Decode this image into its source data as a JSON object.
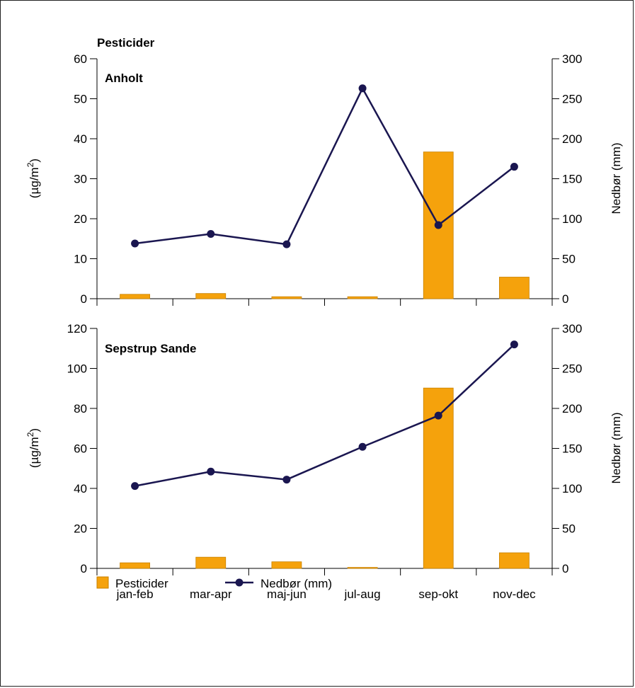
{
  "colors": {
    "bar": "#f5a20c",
    "bar_stroke": "#c98200",
    "line": "#1a1650"
  },
  "legend": {
    "bar_label": "Pesticider",
    "line_label": "Nedbør (mm)"
  },
  "chart_data": [
    {
      "type": "bar+line",
      "title": "Pesticider",
      "subtitle": "Anholt",
      "categories": [
        "jan-feb",
        "mar-apr",
        "maj-jun",
        "jul-aug",
        "sep-okt",
        "nov-dec"
      ],
      "ylabel": "(µg/m²)",
      "ylabel_base": "(µg/m",
      "ylabel_sup": "2",
      "ylabel_close": ")",
      "y2label": "Nedbør (mm)",
      "ylim": [
        0,
        60
      ],
      "yticks": [
        "0",
        "10",
        "20",
        "30",
        "40",
        "50",
        "60"
      ],
      "y2lim": [
        0,
        300
      ],
      "y2ticks": [
        "0",
        "50",
        "100",
        "150",
        "200",
        "250",
        "300"
      ],
      "series": [
        {
          "name": "Pesticider",
          "kind": "bar",
          "axis": "left",
          "values": [
            1.1,
            1.3,
            0.5,
            0.5,
            36.7,
            5.4
          ]
        },
        {
          "name": "Nedbør (mm)",
          "kind": "line",
          "axis": "right",
          "values": [
            69,
            81,
            68,
            263,
            92,
            165
          ]
        }
      ]
    },
    {
      "type": "bar+line",
      "title": "Sepstrup Sande",
      "categories": [
        "jan-feb",
        "mar-apr",
        "maj-jun",
        "jul-aug",
        "sep-okt",
        "nov-dec"
      ],
      "ylabel": "(µg/m²)",
      "ylabel_base": "(µg/m",
      "ylabel_sup": "2",
      "ylabel_close": ")",
      "y2label": "Nedbør (mm)",
      "ylim": [
        0,
        120
      ],
      "yticks": [
        "0",
        "20",
        "40",
        "60",
        "80",
        "100",
        "120"
      ],
      "y2lim": [
        0,
        300
      ],
      "y2ticks": [
        "0",
        "50",
        "100",
        "150",
        "200",
        "250",
        "300"
      ],
      "series": [
        {
          "name": "Pesticider",
          "kind": "bar",
          "axis": "left",
          "values": [
            2.8,
            5.6,
            3.3,
            0.5,
            90.2,
            7.8
          ]
        },
        {
          "name": "Nedbør (mm)",
          "kind": "line",
          "axis": "right",
          "values": [
            103,
            121,
            111,
            152,
            191,
            280
          ]
        }
      ]
    }
  ]
}
